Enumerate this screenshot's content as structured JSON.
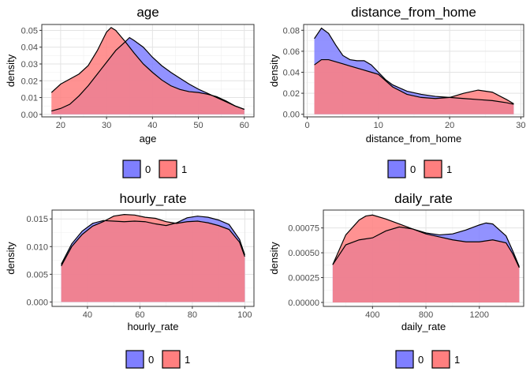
{
  "chart_data": [
    {
      "type": "area",
      "title": "age",
      "xlabel": "age",
      "ylabel": "density",
      "xlim": [
        15.9,
        62.1
      ],
      "ylim": [
        -0.0015,
        0.0535
      ],
      "xticks": [
        20,
        30,
        40,
        50,
        60
      ],
      "xtick_labels": [
        "20",
        "30",
        "40",
        "50",
        "60"
      ],
      "yticks": [
        0,
        0.01,
        0.02,
        0.03,
        0.04,
        0.05
      ],
      "ytick_labels": [
        "0.00",
        "0.01",
        "0.02",
        "0.03",
        "0.04",
        "0.05"
      ],
      "legend": {
        "position": "bottom",
        "entries": [
          "0",
          "1"
        ]
      },
      "series": [
        {
          "name": "0",
          "color": "#7f7fff",
          "x": [
            18,
            20,
            22,
            24,
            26,
            28,
            30,
            32,
            34,
            35,
            36,
            38,
            40,
            42,
            44,
            46,
            48,
            50,
            52,
            54,
            56,
            58,
            60
          ],
          "y": [
            0.002,
            0.0035,
            0.006,
            0.011,
            0.017,
            0.024,
            0.031,
            0.038,
            0.043,
            0.0457,
            0.044,
            0.04,
            0.034,
            0.029,
            0.025,
            0.0215,
            0.018,
            0.015,
            0.0125,
            0.01,
            0.0075,
            0.005,
            0.003
          ]
        },
        {
          "name": "1",
          "color": "#ff7f7f",
          "x": [
            18,
            20,
            22,
            24,
            26,
            28,
            30,
            31,
            32,
            34,
            36,
            38,
            40,
            42,
            44,
            46,
            48,
            50,
            52,
            54,
            56,
            58,
            60
          ],
          "y": [
            0.013,
            0.018,
            0.021,
            0.024,
            0.029,
            0.038,
            0.049,
            0.0517,
            0.05,
            0.0435,
            0.0365,
            0.03,
            0.025,
            0.0205,
            0.017,
            0.0148,
            0.0135,
            0.013,
            0.012,
            0.0105,
            0.008,
            0.005,
            0.003
          ]
        }
      ]
    },
    {
      "type": "area",
      "title": "distance_from_home",
      "xlabel": "distance_from_home",
      "ylabel": "density",
      "xlim": [
        -0.5,
        30.4
      ],
      "ylim": [
        -0.0025,
        0.0855
      ],
      "xticks": [
        0,
        10,
        20,
        30
      ],
      "xtick_labels": [
        "0",
        "10",
        "20",
        "30"
      ],
      "yticks": [
        0,
        0.02,
        0.04,
        0.06,
        0.08
      ],
      "ytick_labels": [
        "0.00",
        "0.02",
        "0.04",
        "0.06",
        "0.08"
      ],
      "legend": {
        "position": "bottom",
        "entries": [
          "0",
          "1"
        ]
      },
      "series": [
        {
          "name": "0",
          "color": "#7f7fff",
          "x": [
            1,
            2,
            3,
            4,
            5,
            6,
            7,
            8,
            9,
            10,
            11,
            12,
            14,
            16,
            18,
            20,
            22,
            24,
            26,
            28,
            29
          ],
          "y": [
            0.072,
            0.082,
            0.077,
            0.066,
            0.056,
            0.052,
            0.051,
            0.051,
            0.047,
            0.04,
            0.033,
            0.028,
            0.022,
            0.019,
            0.017,
            0.016,
            0.015,
            0.014,
            0.013,
            0.011,
            0.0095
          ]
        },
        {
          "name": "1",
          "color": "#ff7f7f",
          "x": [
            1,
            2,
            3,
            4,
            5,
            6,
            7,
            8,
            9,
            10,
            11,
            12,
            14,
            16,
            18,
            20,
            22,
            24,
            26,
            28,
            29
          ],
          "y": [
            0.047,
            0.052,
            0.052,
            0.05,
            0.048,
            0.046,
            0.044,
            0.042,
            0.04,
            0.038,
            0.032,
            0.026,
            0.019,
            0.016,
            0.015,
            0.016,
            0.02,
            0.023,
            0.021,
            0.014,
            0.01
          ]
        }
      ]
    },
    {
      "type": "area",
      "title": "hourly_rate",
      "xlabel": "hourly_rate",
      "ylabel": "density",
      "xlim": [
        26.5,
        103.5
      ],
      "ylim": [
        -0.0008,
        0.0166
      ],
      "xticks": [
        40,
        60,
        80,
        100
      ],
      "xtick_labels": [
        "40",
        "60",
        "80",
        "100"
      ],
      "yticks": [
        0,
        0.005,
        0.01,
        0.015
      ],
      "ytick_labels": [
        "0.000",
        "0.005",
        "0.010",
        "0.015"
      ],
      "legend": {
        "position": "bottom",
        "entries": [
          "0",
          "1"
        ]
      },
      "series": [
        {
          "name": "0",
          "color": "#7f7fff",
          "x": [
            30,
            34,
            38,
            42,
            46,
            50,
            54,
            58,
            62,
            66,
            70,
            74,
            78,
            82,
            86,
            90,
            94,
            98,
            100
          ],
          "y": [
            0.0068,
            0.0105,
            0.0128,
            0.0142,
            0.0147,
            0.0146,
            0.0145,
            0.0146,
            0.0145,
            0.0141,
            0.0138,
            0.0143,
            0.0152,
            0.0155,
            0.0153,
            0.0148,
            0.014,
            0.0113,
            0.0085
          ]
        },
        {
          "name": "1",
          "color": "#ff7f7f",
          "x": [
            30,
            34,
            38,
            42,
            46,
            50,
            54,
            58,
            62,
            66,
            70,
            74,
            78,
            82,
            86,
            90,
            94,
            98,
            100
          ],
          "y": [
            0.0065,
            0.01,
            0.0122,
            0.0137,
            0.0145,
            0.0155,
            0.0158,
            0.0157,
            0.0153,
            0.0151,
            0.0145,
            0.0142,
            0.0145,
            0.0146,
            0.0143,
            0.0138,
            0.0131,
            0.0108,
            0.0082
          ]
        }
      ]
    },
    {
      "type": "area",
      "title": "daily_rate",
      "xlabel": "daily_rate",
      "ylabel": "density",
      "xlim": [
        32,
        1532
      ],
      "ylim": [
        -4e-05,
        0.00093
      ],
      "xticks": [
        400,
        800,
        1200
      ],
      "xtick_labels": [
        "400",
        "800",
        "1200"
      ],
      "yticks": [
        0,
        0.00025,
        0.0005,
        0.00075
      ],
      "ytick_labels": [
        "0.00000",
        "0.00025",
        "0.00050",
        "0.00075"
      ],
      "legend": {
        "position": "bottom",
        "entries": [
          "0",
          "1"
        ]
      },
      "series": [
        {
          "name": "0",
          "color": "#7f7fff",
          "x": [
            102,
            200,
            300,
            400,
            500,
            600,
            700,
            800,
            900,
            1000,
            1100,
            1200,
            1250,
            1300,
            1400,
            1450,
            1499
          ],
          "y": [
            0.00038,
            0.00058,
            0.00063,
            0.00065,
            0.00072,
            0.00076,
            0.00074,
            0.0007,
            0.00068,
            0.00069,
            0.00073,
            0.00078,
            0.0008,
            0.00079,
            0.00067,
            0.00052,
            0.00036
          ]
        },
        {
          "name": "1",
          "color": "#ff7f7f",
          "x": [
            102,
            200,
            300,
            350,
            400,
            500,
            600,
            700,
            800,
            900,
            1000,
            1100,
            1200,
            1300,
            1400,
            1450,
            1499
          ],
          "y": [
            0.00038,
            0.00068,
            0.00083,
            0.00087,
            0.00088,
            0.00084,
            0.00079,
            0.00074,
            0.00069,
            0.00066,
            0.00063,
            0.00061,
            0.00061,
            0.00063,
            0.0006,
            0.00049,
            0.00035
          ]
        }
      ]
    }
  ]
}
